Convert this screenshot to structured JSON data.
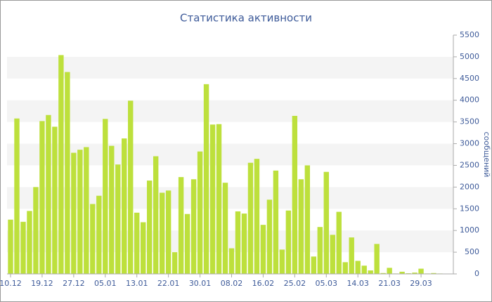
{
  "chart_data": {
    "type": "bar",
    "title": "Статистика активности",
    "y_label": "сообщений",
    "categories": [
      "10.12",
      null,
      null,
      null,
      null,
      "19.12",
      null,
      null,
      null,
      null,
      "27.12",
      null,
      null,
      null,
      null,
      "05.01",
      null,
      null,
      null,
      null,
      "13.01",
      null,
      null,
      null,
      null,
      "22.01",
      null,
      null,
      null,
      null,
      "30.01",
      null,
      null,
      null,
      null,
      "08.02",
      null,
      null,
      null,
      null,
      "16.02",
      null,
      null,
      null,
      null,
      "25.02",
      null,
      null,
      null,
      null,
      "05.03",
      null,
      null,
      null,
      null,
      "14.03",
      null,
      null,
      null,
      null,
      "21.03",
      null,
      null,
      null,
      null,
      "29.03",
      null,
      null,
      null
    ],
    "values": [
      1250,
      3580,
      1200,
      1450,
      2000,
      3520,
      3660,
      3390,
      5040,
      4650,
      2790,
      2860,
      2920,
      1610,
      1800,
      3570,
      2950,
      2520,
      3120,
      3990,
      1410,
      1190,
      2150,
      2710,
      1870,
      1920,
      500,
      2230,
      1380,
      2180,
      2820,
      4370,
      3440,
      3450,
      2100,
      590,
      1440,
      1390,
      2560,
      2650,
      1130,
      1710,
      2380,
      560,
      1460,
      3640,
      2180,
      2500,
      400,
      1080,
      2350,
      900,
      1430,
      270,
      840,
      300,
      190,
      80,
      690,
      20,
      140,
      10,
      50,
      15,
      30,
      120,
      10,
      20,
      10
    ],
    "color": "#bde03c",
    "ylim": [
      0,
      5500
    ],
    "yticks": [
      0,
      500,
      1000,
      1500,
      2000,
      2500,
      3000,
      3500,
      4000,
      4500,
      5000,
      5500
    ],
    "grid": true,
    "y_axis_side": "right"
  }
}
